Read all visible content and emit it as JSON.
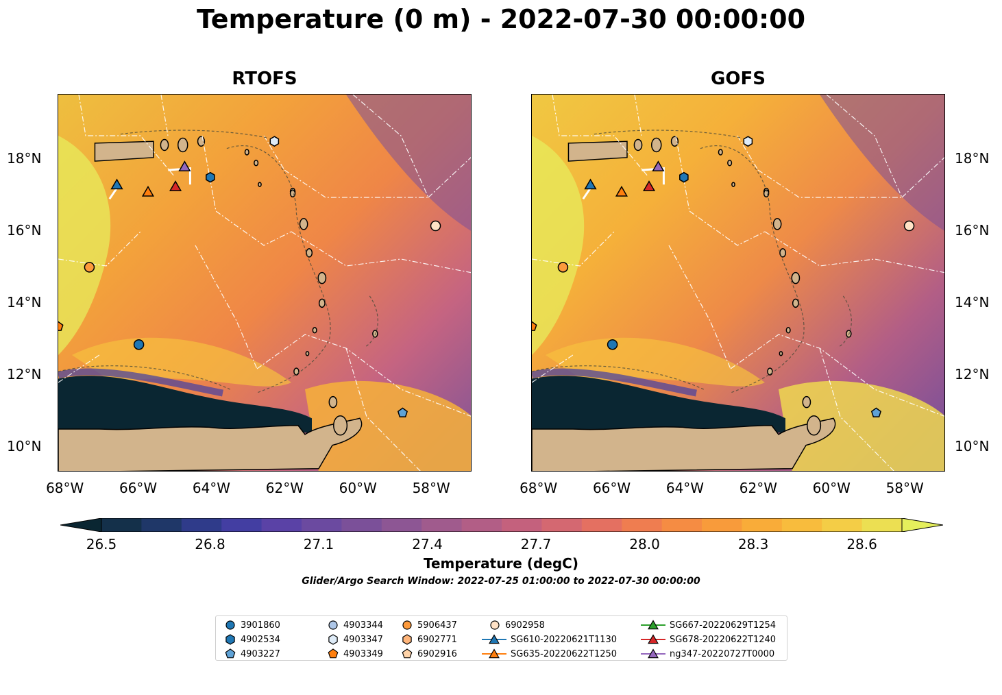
{
  "title": "Temperature (0 m) - 2022-07-30 00:00:00",
  "panels": [
    {
      "title": "RTOFS"
    },
    {
      "title": "GOFS"
    }
  ],
  "axes": {
    "lon_ticks": [
      "68°W",
      "66°W",
      "64°W",
      "62°W",
      "60°W",
      "58°W"
    ],
    "lat_ticks": [
      "18°N",
      "16°N",
      "14°N",
      "12°N",
      "10°N"
    ],
    "lon_range": [
      -68.2,
      -56.9
    ],
    "lat_range": [
      9.3,
      19.8
    ]
  },
  "colorbar": {
    "label": "Temperature (degC)",
    "ticks": [
      "26.5",
      "26.8",
      "27.1",
      "27.4",
      "27.7",
      "28.0",
      "28.3",
      "28.6"
    ],
    "range": [
      26.5,
      28.6
    ],
    "extend": "both",
    "colors": [
      "#0a2632",
      "#14304a",
      "#1f3768",
      "#2f3b8a",
      "#433ea2",
      "#5a42a6",
      "#6b4aa0",
      "#7b5099",
      "#8d5694",
      "#a05b8d",
      "#b25e86",
      "#c4617d",
      "#d46871",
      "#e47061",
      "#ef7d50",
      "#f58c43",
      "#f89b3b",
      "#f9ac39",
      "#f8bc3d",
      "#f4cd46",
      "#ecdf52",
      "#e5ef5c"
    ]
  },
  "search_window_text": "Glider/Argo Search Window: 2022-07-25 01:00:00 to 2022-07-30 00:00:00",
  "legend": [
    {
      "label": "3901860",
      "marker": "circle",
      "color": "#1f77b4"
    },
    {
      "label": "4902534",
      "marker": "hexagon",
      "color": "#1f77b4"
    },
    {
      "label": "4903227",
      "marker": "pentagon",
      "color": "#5fa2d6"
    },
    {
      "label": "4903344",
      "marker": "circle",
      "color": "#aec7e8"
    },
    {
      "label": "4903347",
      "marker": "hexagon",
      "color": "#deebf7"
    },
    {
      "label": "4903349",
      "marker": "pentagon",
      "color": "#ff7f0e"
    },
    {
      "label": "5906437",
      "marker": "circle",
      "color": "#fd9a3c"
    },
    {
      "label": "6902771",
      "marker": "hexagon",
      "color": "#ffb57a"
    },
    {
      "label": "6902916",
      "marker": "pentagon",
      "color": "#ffd3a8"
    },
    {
      "label": "6902958",
      "marker": "circle",
      "color": "#ffe2c6"
    },
    {
      "label": "SG610-20220621T1130",
      "marker": "triangle-line",
      "color": "#1f77b4"
    },
    {
      "label": "SG635-20220622T1250",
      "marker": "triangle-line",
      "color": "#ff7f0e"
    },
    {
      "label": "SG667-20220629T1254",
      "marker": "triangle-line",
      "color": "#2ca02c"
    },
    {
      "label": "SG678-20220622T1240",
      "marker": "triangle-line",
      "color": "#d62728"
    },
    {
      "label": "ng347-20220727T0000",
      "marker": "triangle-line",
      "color": "#9467bd"
    }
  ],
  "observations": [
    {
      "id": "3901860",
      "marker": "circle",
      "color": "#1f77b4",
      "lon": -66.0,
      "lat": 12.85
    },
    {
      "id": "4902534",
      "marker": "hexagon",
      "color": "#1f77b4",
      "lon": -64.05,
      "lat": 17.5
    },
    {
      "id": "4903227",
      "marker": "pentagon",
      "color": "#5fa2d6",
      "lon": -58.8,
      "lat": 10.95
    },
    {
      "id": "4903347",
      "marker": "hexagon",
      "color": "#deebf7",
      "lon": -62.3,
      "lat": 18.5
    },
    {
      "id": "4903349",
      "marker": "pentagon",
      "color": "#ff7f0e",
      "lon": -68.2,
      "lat": 13.35
    },
    {
      "id": "5906437",
      "marker": "circle",
      "color": "#fd9a3c",
      "lon": -67.35,
      "lat": 15.0
    },
    {
      "id": "6902958",
      "marker": "circle",
      "color": "#ffe2c6",
      "lon": -57.9,
      "lat": 16.15
    },
    {
      "id": "SG610-20220621T1130",
      "marker": "triangle",
      "color": "#1f77b4",
      "lon": -66.6,
      "lat": 17.3
    },
    {
      "id": "SG635-20220622T1250",
      "marker": "triangle",
      "color": "#ff7f0e",
      "lon": -65.75,
      "lat": 17.1
    },
    {
      "id": "SG678-20220622T1240",
      "marker": "triangle",
      "color": "#d62728",
      "lon": -65.0,
      "lat": 17.25
    },
    {
      "id": "ng347-20220727T0000",
      "marker": "triangle",
      "color": "#9467bd",
      "lon": -64.75,
      "lat": 17.8
    }
  ]
}
